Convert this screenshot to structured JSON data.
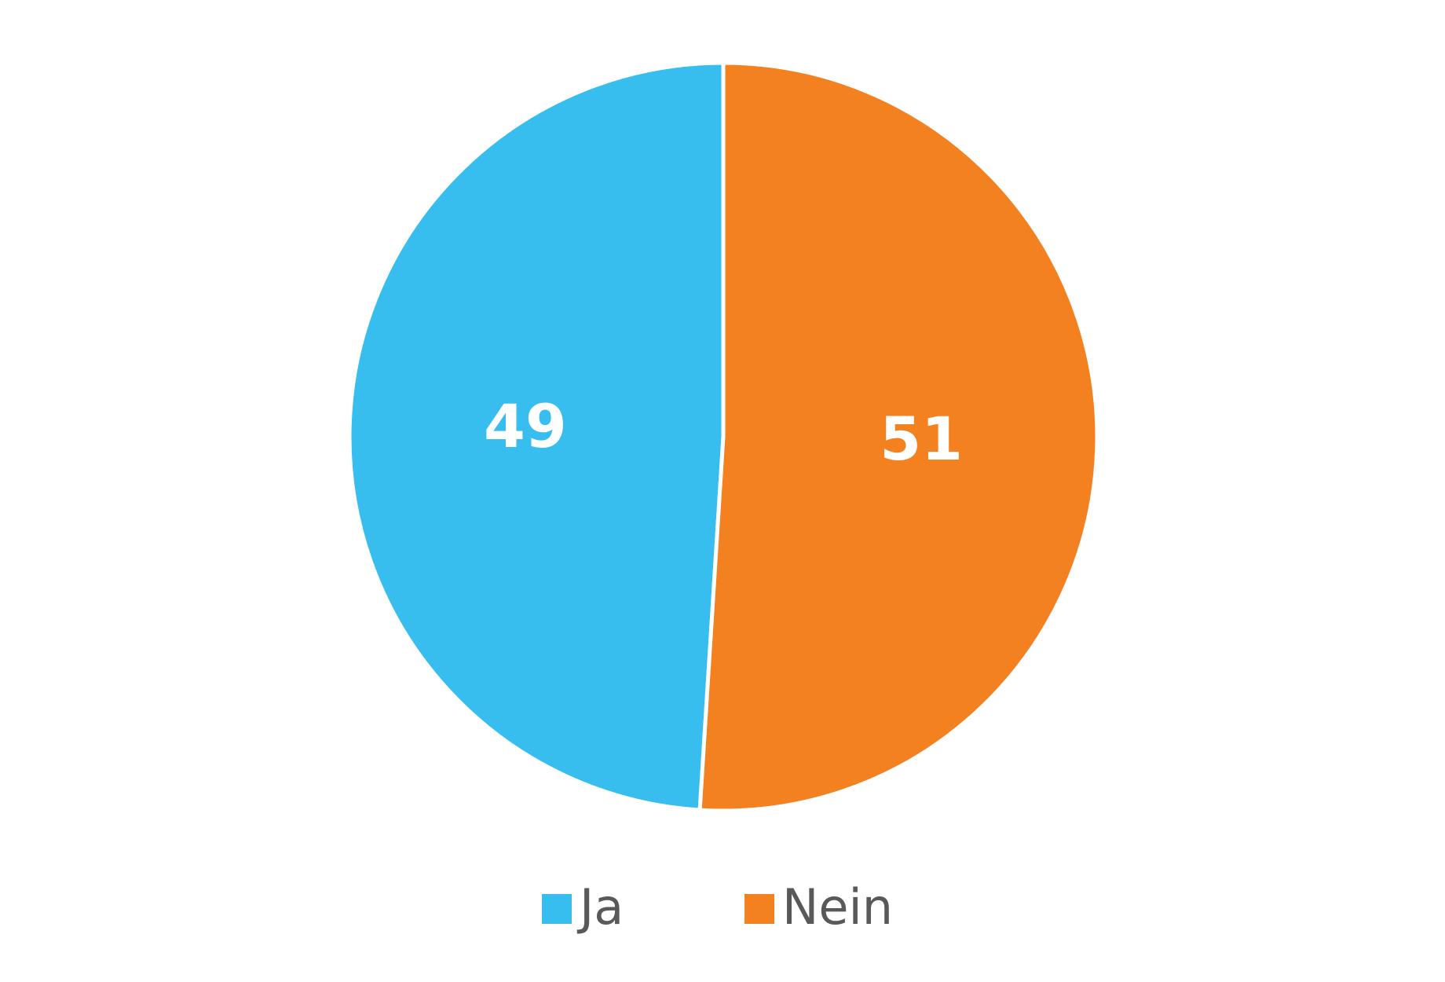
{
  "chart_data": {
    "type": "pie",
    "categories": [
      "Ja",
      "Nein"
    ],
    "values": [
      49,
      51
    ],
    "colors": [
      "#37bdee",
      "#f48120"
    ],
    "legend": "bottom"
  }
}
